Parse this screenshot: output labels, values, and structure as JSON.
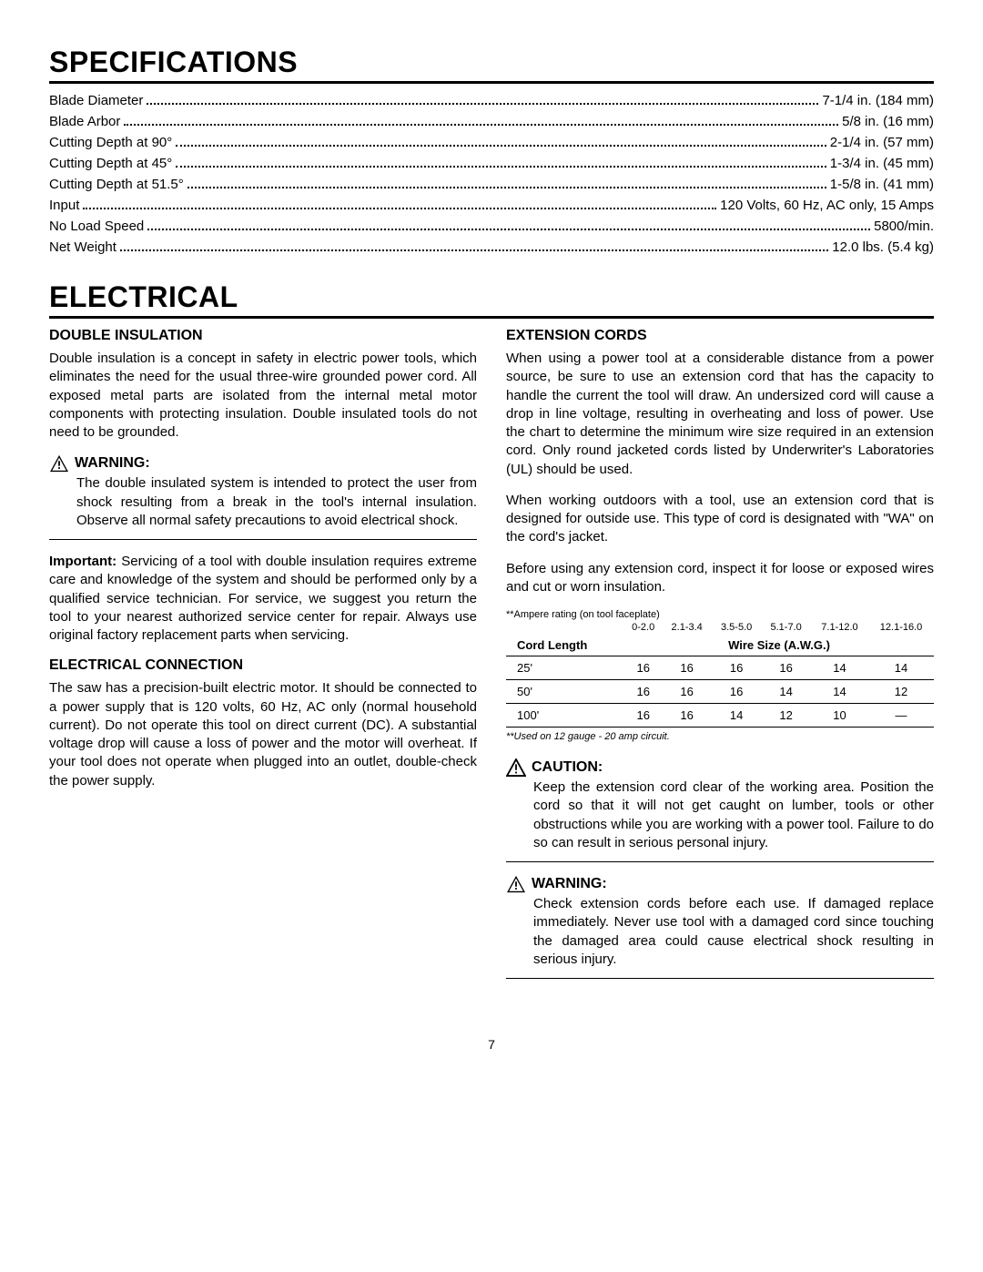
{
  "page_number": "7",
  "sections": {
    "specs": {
      "title": "SPECIFICATIONS",
      "rows": [
        {
          "label": "Blade Diameter",
          "value": "7-1/4 in. (184 mm)"
        },
        {
          "label": "Blade Arbor",
          "value": "5/8 in. (16 mm)"
        },
        {
          "label": "Cutting Depth at 90°",
          "value": "2-1/4 in. (57 mm)"
        },
        {
          "label": "Cutting Depth at 45°",
          "value": "1-3/4 in. (45 mm)"
        },
        {
          "label": "Cutting Depth at 51.5°",
          "value": "1-5/8 in. (41 mm)"
        },
        {
          "label": "Input",
          "value": "120 Volts, 60 Hz, AC only, 15 Amps"
        },
        {
          "label": "No Load Speed",
          "value": "5800/min."
        },
        {
          "label": "Net Weight",
          "value": "12.0 lbs. (5.4 kg)"
        }
      ]
    },
    "electrical": {
      "title": "ELECTRICAL",
      "left": {
        "double_insulation": {
          "heading": "DOUBLE INSULATION",
          "body": "Double insulation is a concept in safety in electric power tools, which eliminates the need for the usual three-wire grounded power cord. All exposed metal parts are isolated from the internal metal motor components with protecting insulation. Double insulated tools do not need to be grounded."
        },
        "warning1": {
          "label": "WARNING:",
          "body": "The double insulated system is intended to protect the user from shock resulting from a break in the tool's internal insulation. Observe all normal safety precautions to avoid electrical shock."
        },
        "important": {
          "label": "Important:",
          "body": "Servicing of a tool with double insulation requires extreme care and knowledge of the system and should be performed only by a qualified service technician. For service, we suggest you return the tool to your nearest authorized service center for repair. Always use original factory replacement parts when servicing."
        },
        "electrical_connection": {
          "heading": "ELECTRICAL CONNECTION",
          "body": "The saw has a precision-built electric motor. It should be connected to a power supply that is 120 volts, 60 Hz, AC only (normal household current). Do not operate this tool on direct current (DC). A substantial voltage drop will cause a loss of power and the motor will overheat. If your tool does not operate when plugged into an outlet, double-check the power supply."
        }
      },
      "right": {
        "extension_cords": {
          "heading": "EXTENSION CORDS",
          "p1": "When using a power tool at a considerable distance from a power source, be sure to use an extension cord that has the capacity to handle the current the tool will draw. An undersized cord will cause a drop in line voltage, resulting in overheating and loss of power. Use the chart to determine the minimum wire size required in an extension cord. Only round jacketed cords listed by Underwriter's Laboratories (UL) should be used.",
          "p2": "When working outdoors with a tool, use an extension cord that is designed for outside use. This type of cord is designated with \"WA\" on the cord's jacket.",
          "p3": "Before using any extension cord, inspect it for loose or exposed wires and cut or worn insulation."
        },
        "table": {
          "note": "**Ampere rating  (on tool faceplate)",
          "amp_ranges": [
            "0-2.0",
            "2.1-3.4",
            "3.5-5.0",
            "5.1-7.0",
            "7.1-12.0",
            "12.1-16.0"
          ],
          "h_left": "Cord Length",
          "h_right": "Wire Size (A.W.G.)",
          "rows": [
            {
              "len": "25'",
              "v": [
                "16",
                "16",
                "16",
                "16",
                "14",
                "14"
              ]
            },
            {
              "len": "50'",
              "v": [
                "16",
                "16",
                "16",
                "14",
                "14",
                "12"
              ]
            },
            {
              "len": "100'",
              "v": [
                "16",
                "16",
                "14",
                "12",
                "10",
                "—"
              ]
            }
          ],
          "footnote": "**Used on 12 gauge - 20 amp circuit."
        },
        "caution": {
          "label": "CAUTION:",
          "body": "Keep the extension cord clear of the working area. Position the cord so that it will not get caught on lumber, tools or other obstructions while you are working with a power tool. Failure to do so can result in serious personal injury."
        },
        "warning2": {
          "label": "WARNING:",
          "body": "Check extension cords before each use. If damaged replace immediately. Never use tool with a damaged cord since touching the damaged area could cause electrical shock resulting in serious injury."
        }
      }
    }
  }
}
